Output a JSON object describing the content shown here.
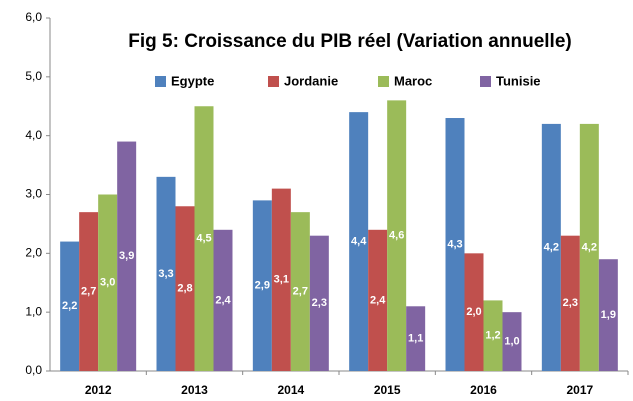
{
  "chart_data": {
    "type": "bar",
    "title": "Fig 5: Croissance  du PIB réel (Variation  annuelle)",
    "categories": [
      "2012",
      "2013",
      "2014",
      "2015",
      "2016",
      "2017"
    ],
    "series": [
      {
        "name": "Egypte",
        "color": "#4f81bd",
        "values": [
          2.2,
          3.3,
          2.9,
          4.4,
          4.3,
          4.2
        ],
        "value_labels": [
          "2,2",
          "3,3",
          "2,9",
          "4,4",
          "4,3",
          "4,2"
        ]
      },
      {
        "name": "Jordanie",
        "color": "#c0504d",
        "values": [
          2.7,
          2.8,
          3.1,
          2.4,
          2.0,
          2.3
        ],
        "value_labels": [
          "2,7",
          "2,8",
          "3,1",
          "2,4",
          "2,0",
          "2,3"
        ]
      },
      {
        "name": "Maroc",
        "color": "#9bbb59",
        "values": [
          3.0,
          4.5,
          2.7,
          4.6,
          1.2,
          4.2
        ],
        "value_labels": [
          "3,0",
          "4,5",
          "2,7",
          "4,6",
          "1,2",
          "4,2"
        ]
      },
      {
        "name": "Tunisie",
        "color": "#8064a2",
        "values": [
          3.9,
          2.4,
          2.3,
          1.1,
          1.0,
          1.9
        ],
        "value_labels": [
          "3,9",
          "2,4",
          "2,3",
          "1,1",
          "1,0",
          "1,9"
        ]
      }
    ],
    "ylim": [
      0,
      6
    ],
    "yticks": [
      {
        "value": 0,
        "label": "0,0"
      },
      {
        "value": 1,
        "label": "1,0"
      },
      {
        "value": 2,
        "label": "2,0"
      },
      {
        "value": 3,
        "label": "3,0"
      },
      {
        "value": 4,
        "label": "4,0"
      },
      {
        "value": 5,
        "label": "5,0"
      },
      {
        "value": 6,
        "label": "6,0"
      }
    ],
    "grid": false,
    "legend": "top"
  }
}
